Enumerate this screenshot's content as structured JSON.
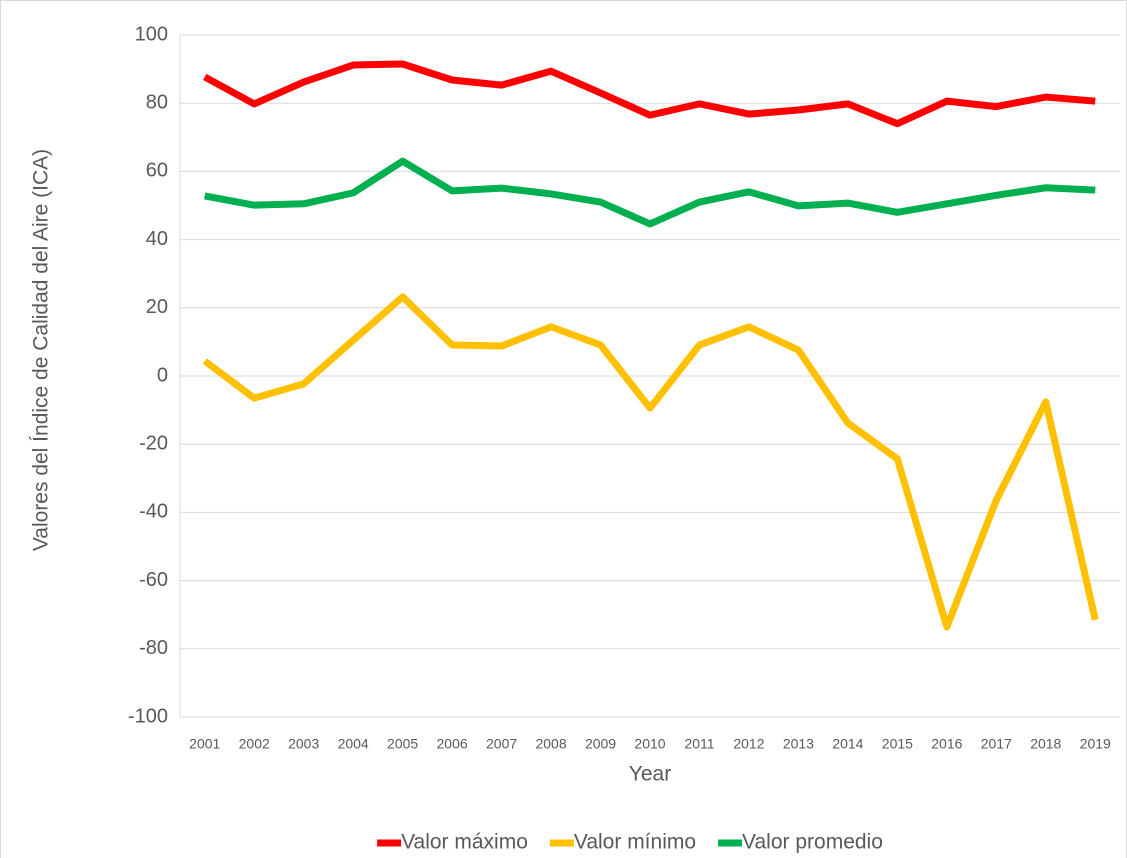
{
  "chart_data": {
    "type": "line",
    "x_label": "Year",
    "y_label": "Valores del Índice de Calidad del Aire (ICA)",
    "categories": [
      "2001",
      "2002",
      "2003",
      "2004",
      "2005",
      "2006",
      "2007",
      "2008",
      "2009",
      "2010",
      "2011",
      "2012",
      "2013",
      "2014",
      "2015",
      "2016",
      "2017",
      "2018",
      "2019"
    ],
    "series": [
      {
        "name": "Valor máximo",
        "color": "#ff0000",
        "values": [
          87.7,
          79.8,
          86.2,
          91.2,
          91.5,
          86.8,
          85.3,
          89.4,
          83,
          76.5,
          79.8,
          76.8,
          78,
          79.8,
          74,
          80.6,
          79,
          81.8,
          80.6
        ]
      },
      {
        "name": "Valor mínimo",
        "color": "#ffc000",
        "values": [
          4.4,
          -6.5,
          -2.3,
          10.5,
          23.2,
          9.1,
          8.8,
          14.4,
          9.1,
          -9.4,
          9.1,
          14.4,
          7.6,
          -13.8,
          -24.3,
          -73.6,
          -36.4,
          -7.6,
          -71.5
        ]
      },
      {
        "name": "Valor promedio",
        "color": "#00b050",
        "values": [
          52.8,
          50.1,
          50.5,
          53.7,
          63,
          54.3,
          55.1,
          53.4,
          51,
          44.6,
          51,
          54,
          49.9,
          50.7,
          48,
          50.5,
          53,
          55.2,
          54.5
        ]
      }
    ],
    "ylim": [
      -100,
      100
    ],
    "yticks": [
      -100,
      -80,
      -60,
      -40,
      -20,
      0,
      20,
      40,
      60,
      80,
      100
    ],
    "grid": true,
    "legend": "bottom"
  }
}
